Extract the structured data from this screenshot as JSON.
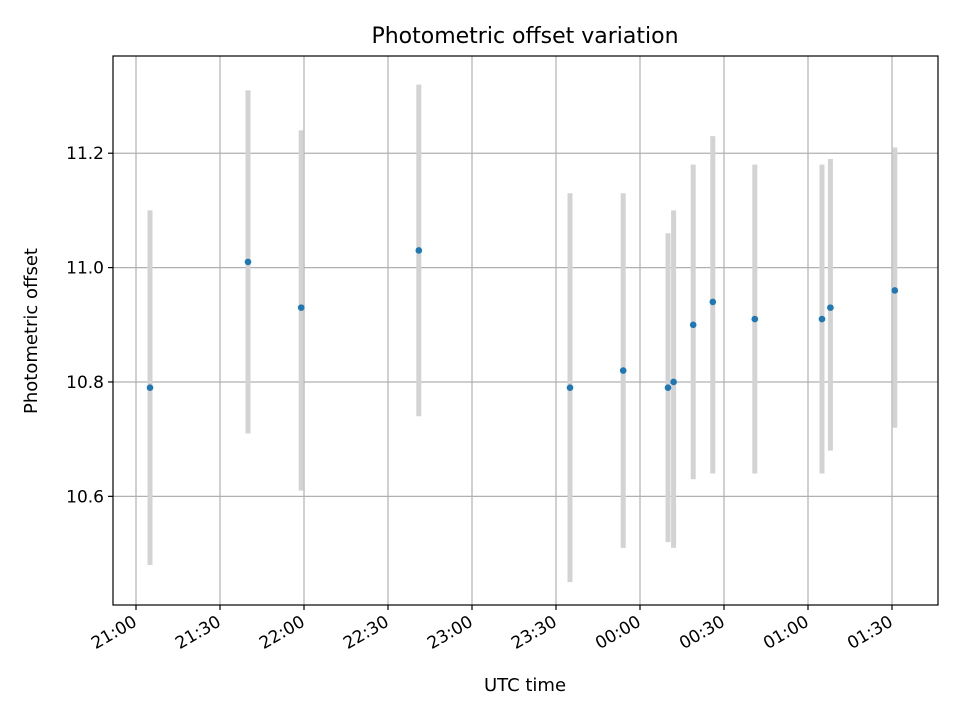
{
  "chart_data": {
    "type": "scatter",
    "title": "Photometric offset variation",
    "xlabel": "UTC time",
    "ylabel": "Photometric offset",
    "x_ticks": [
      "21:00",
      "21:30",
      "22:00",
      "22:30",
      "23:00",
      "23:30",
      "00:00",
      "00:30",
      "01:00",
      "01:30"
    ],
    "y_ticks": [
      "10.6",
      "10.8",
      "11.0",
      "11.2"
    ],
    "ylim": [
      10.41,
      11.37
    ],
    "grid": true,
    "colors": {
      "point": "#1f77b4",
      "errorbar": "#d3d3d3",
      "grid": "#b0b0b0"
    },
    "points": [
      {
        "time": "21:05",
        "y": 10.79,
        "low": 10.48,
        "high": 11.1
      },
      {
        "time": "21:40",
        "y": 11.01,
        "low": 10.71,
        "high": 11.31
      },
      {
        "time": "21:59",
        "y": 10.93,
        "low": 10.61,
        "high": 11.24
      },
      {
        "time": "22:41",
        "y": 11.03,
        "low": 10.74,
        "high": 11.32
      },
      {
        "time": "23:35",
        "y": 10.79,
        "low": 10.45,
        "high": 11.13
      },
      {
        "time": "23:54",
        "y": 10.82,
        "low": 10.51,
        "high": 11.13
      },
      {
        "time": "00:10",
        "y": 10.79,
        "low": 10.52,
        "high": 11.06
      },
      {
        "time": "00:12",
        "y": 10.8,
        "low": 10.51,
        "high": 11.1
      },
      {
        "time": "00:19",
        "y": 10.9,
        "low": 10.63,
        "high": 11.18
      },
      {
        "time": "00:26",
        "y": 10.94,
        "low": 10.64,
        "high": 11.23
      },
      {
        "time": "00:41",
        "y": 10.91,
        "low": 10.64,
        "high": 11.18
      },
      {
        "time": "01:05",
        "y": 10.91,
        "low": 10.64,
        "high": 11.18
      },
      {
        "time": "01:08",
        "y": 10.93,
        "low": 10.68,
        "high": 11.19
      },
      {
        "time": "01:31",
        "y": 10.96,
        "low": 10.72,
        "high": 11.21
      }
    ]
  }
}
